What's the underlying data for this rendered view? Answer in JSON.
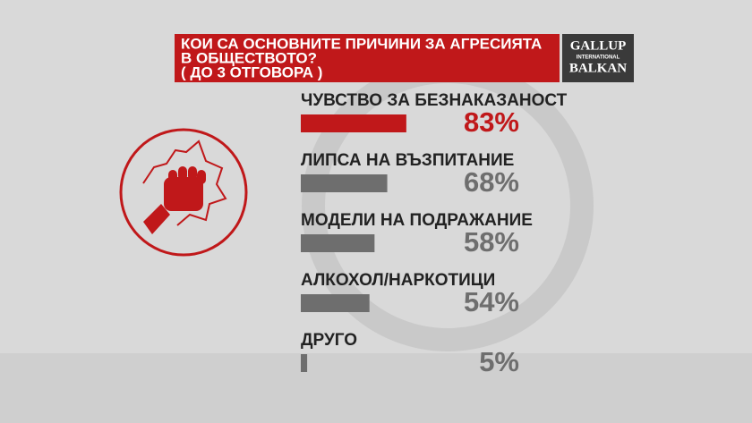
{
  "chart_data": {
    "type": "bar",
    "orientation": "horizontal",
    "title": "КОИ СА ОСНОВНИТЕ ПРИЧИНИ ЗА АГРЕСИЯТА",
    "title_line2": "В ОБЩЕСТВОТО?",
    "subtitle": "( ДО 3 ОТГОВОРА )",
    "source_logo": {
      "line1": "GALLUP",
      "line2": "INTERNATIONAL",
      "line3": "BALKAN"
    },
    "categories": [
      "ЧУВСТВО ЗА БЕЗНАКАЗАНОСТ",
      "ЛИПСА НА ВЪЗПИТАНИЕ",
      "МОДЕЛИ НА ПОДРАЖАНИЕ",
      "АЛКОХОЛ/НАРКОТИЦИ",
      "ДРУГО"
    ],
    "values": [
      83,
      68,
      58,
      54,
      5
    ],
    "value_labels": [
      "83%",
      "68%",
      "58%",
      "54%",
      "5%"
    ],
    "colors": [
      "#c0181a",
      "#6e6e6e",
      "#6e6e6e",
      "#6e6e6e",
      "#6e6e6e"
    ]
  }
}
